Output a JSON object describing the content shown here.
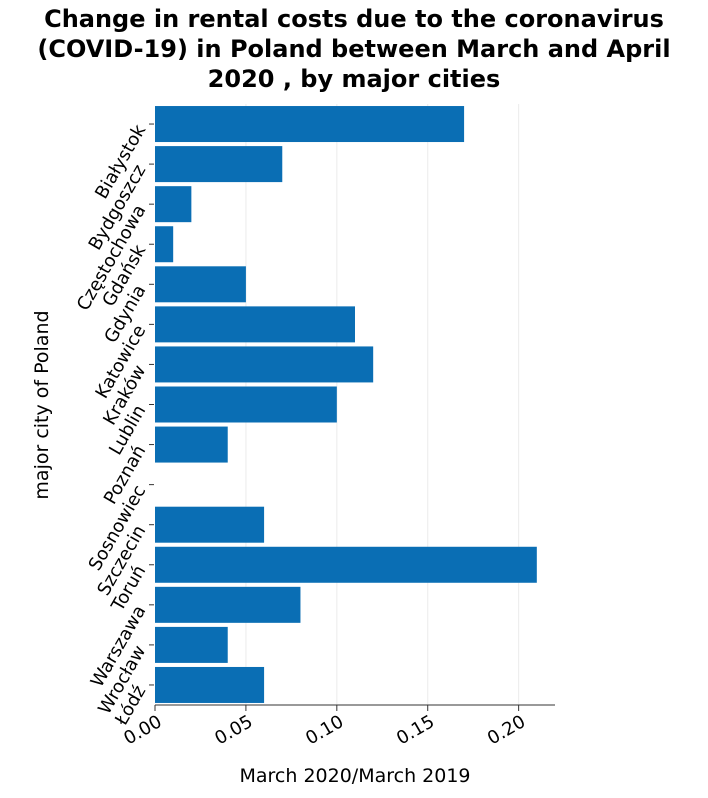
{
  "chart_data": {
    "type": "bar",
    "orientation": "horizontal",
    "title": "Change in rental costs due to the coronavirus\n(COVID-19) in Poland between March and April\n2020 , by major cities",
    "xlabel": "March 2020/March 2019",
    "ylabel": "major city of Poland",
    "xlim": [
      0,
      0.22
    ],
    "xticks": [
      "0.00",
      "0.05",
      "0.10",
      "0.15",
      "0.20"
    ],
    "xtick_values": [
      0,
      0.05,
      0.1,
      0.15,
      0.2
    ],
    "grid": true,
    "categories": [
      "Białystok",
      "Bydgoszcz",
      "Częstochowa",
      "Gdańsk",
      "Gdynia",
      "Katowice",
      "Kraków",
      "Lublin",
      "Poznań",
      "Sosnowiec",
      "Szczecin",
      "Toruń",
      "Warszawa",
      "Wrocław",
      "Łódź"
    ],
    "values": [
      0.17,
      0.07,
      0.02,
      0.01,
      0.05,
      0.11,
      0.12,
      0.1,
      0.04,
      0,
      0.06,
      0.21,
      0.08,
      0.04,
      0.06
    ],
    "colors": {
      "bar": "#0a6eb4",
      "grid": "#ebebeb",
      "axis": "#333333"
    }
  }
}
